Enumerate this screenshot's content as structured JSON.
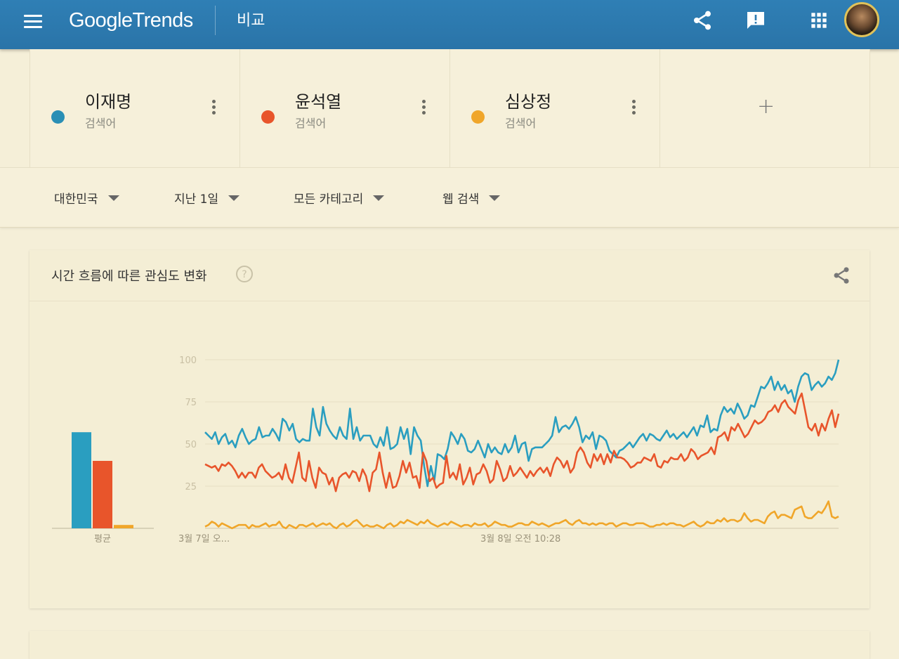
{
  "header": {
    "logo_google": "Google",
    "logo_trends": "Trends",
    "page_title": "비교",
    "icons": [
      "menu-icon",
      "share-icon",
      "feedback-icon",
      "apps-icon",
      "avatar"
    ]
  },
  "terms": [
    {
      "name": "이재명",
      "sub": "검색어",
      "color": "#2a8fb5"
    },
    {
      "name": "윤석열",
      "sub": "검색어",
      "color": "#e8552b"
    },
    {
      "name": "심상정",
      "sub": "검색어",
      "color": "#f0a62a"
    }
  ],
  "add_term_label": "+",
  "filters": {
    "region": "대한민국",
    "time": "지난 1일",
    "category": "모든 카테고리",
    "search_type": "웹 검색"
  },
  "chart_card": {
    "title": "시간 흐름에 따른 관심도 변화",
    "help_icon": "help-icon",
    "share_icon": "share-icon"
  },
  "chart_data": {
    "type": "line",
    "ylim": [
      0,
      100
    ],
    "yticks": [
      "100",
      "75",
      "50",
      "25"
    ],
    "x_tick_labels": [
      "3월 7일 오...",
      "3월 8일 오전 10:28"
    ],
    "average_label": "평균",
    "averages": [
      57,
      40,
      2
    ],
    "series": [
      {
        "name": "이재명",
        "color": "#2a9ec0",
        "values": [
          57,
          55,
          53,
          57,
          50,
          54,
          56,
          50,
          52,
          48,
          55,
          59,
          54,
          50,
          52,
          53,
          60,
          54,
          55,
          55,
          59,
          56,
          52,
          65,
          63,
          58,
          62,
          53,
          51,
          53,
          52,
          52,
          71,
          60,
          55,
          72,
          62,
          58,
          55,
          53,
          60,
          55,
          53,
          71,
          53,
          60,
          52,
          55,
          55,
          55,
          50,
          48,
          54,
          49,
          60,
          47,
          48,
          50,
          60,
          53,
          59,
          44,
          60,
          55,
          52,
          37,
          25,
          37,
          28,
          44,
          43,
          41,
          47,
          57,
          54,
          50,
          56,
          53,
          46,
          45,
          47,
          52,
          47,
          42,
          50,
          45,
          48,
          45,
          44,
          50,
          45,
          48,
          55,
          45,
          50,
          51,
          40,
          47,
          48,
          48,
          48,
          50,
          52,
          55,
          66,
          57,
          60,
          61,
          59,
          62,
          66,
          60,
          51,
          55,
          53,
          57,
          47,
          55,
          54,
          52,
          46,
          44,
          42,
          46,
          47,
          49,
          51,
          48,
          51,
          54,
          56,
          52,
          56,
          55,
          53,
          52,
          55,
          58,
          54,
          56,
          53,
          55,
          57,
          54,
          57,
          60,
          55,
          61,
          60,
          67,
          57,
          59,
          58,
          67,
          72,
          69,
          71,
          68,
          74,
          70,
          65,
          67,
          73,
          72,
          78,
          84,
          83,
          86,
          90,
          82,
          87,
          82,
          85,
          80,
          82,
          75,
          84,
          90,
          92,
          91,
          82,
          85,
          87,
          84,
          86,
          90,
          88,
          92,
          100
        ]
      },
      {
        "name": "윤석열",
        "color": "#e8552b",
        "values": [
          38,
          37,
          36,
          37,
          34,
          38,
          37,
          39,
          37,
          34,
          30,
          33,
          30,
          33,
          33,
          30,
          36,
          38,
          34,
          32,
          30,
          31,
          33,
          29,
          38,
          30,
          27,
          36,
          45,
          30,
          28,
          40,
          30,
          24,
          36,
          33,
          32,
          26,
          30,
          22,
          30,
          32,
          33,
          30,
          34,
          33,
          28,
          35,
          31,
          22,
          33,
          35,
          45,
          33,
          24,
          33,
          24,
          25,
          31,
          40,
          33,
          39,
          30,
          31,
          24,
          45,
          40,
          28,
          30,
          24,
          26,
          27,
          43,
          30,
          33,
          29,
          38,
          26,
          30,
          36,
          26,
          32,
          33,
          38,
          34,
          27,
          29,
          40,
          35,
          28,
          30,
          37,
          31,
          33,
          36,
          33,
          30,
          34,
          31,
          34,
          36,
          33,
          36,
          31,
          38,
          42,
          40,
          36,
          40,
          33,
          36,
          45,
          48,
          45,
          39,
          36,
          44,
          40,
          44,
          38,
          44,
          39,
          46,
          42,
          42,
          41,
          39,
          36,
          37,
          39,
          39,
          42,
          41,
          40,
          44,
          37,
          36,
          40,
          39,
          42,
          41,
          41,
          44,
          40,
          42,
          47,
          45,
          41,
          43,
          44,
          45,
          48,
          44,
          54,
          55,
          57,
          52,
          60,
          58,
          62,
          58,
          54,
          56,
          60,
          64,
          62,
          63,
          65,
          69,
          70,
          73,
          69,
          74,
          76,
          72,
          70,
          68,
          76,
          80,
          70,
          60,
          58,
          62,
          55,
          62,
          58,
          65,
          70,
          60,
          68
        ]
      },
      {
        "name": "심상정",
        "color": "#f0a62a",
        "values": [
          1,
          2,
          4,
          3,
          1,
          3,
          2,
          1,
          0,
          1,
          2,
          2,
          2,
          0,
          2,
          1,
          1,
          2,
          3,
          1,
          2,
          2,
          4,
          1,
          0,
          2,
          1,
          0,
          2,
          2,
          1,
          2,
          3,
          1,
          2,
          3,
          2,
          3,
          1,
          0,
          2,
          3,
          1,
          2,
          4,
          5,
          3,
          1,
          2,
          1,
          1,
          2,
          1,
          0,
          2,
          3,
          1,
          2,
          4,
          3,
          5,
          4,
          3,
          2,
          4,
          3,
          5,
          3,
          2,
          1,
          2,
          3,
          2,
          4,
          3,
          2,
          1,
          2,
          2,
          1,
          3,
          2,
          2,
          3,
          1,
          2,
          4,
          3,
          2,
          2,
          1,
          1,
          2,
          3,
          3,
          2,
          2,
          4,
          3,
          2,
          3,
          2,
          1,
          2,
          3,
          3,
          4,
          5,
          3,
          2,
          4,
          5,
          3,
          3,
          2,
          3,
          2,
          3,
          3,
          2,
          3,
          3,
          1,
          2,
          3,
          3,
          2,
          2,
          3,
          3,
          3,
          2,
          1,
          1,
          2,
          2,
          3,
          2,
          3,
          3,
          2,
          2,
          1,
          2,
          3,
          4,
          2,
          1,
          2,
          4,
          3,
          3,
          5,
          4,
          6,
          4,
          5,
          5,
          4,
          5,
          9,
          6,
          4,
          5,
          5,
          4,
          3,
          7,
          9,
          10,
          6,
          8,
          8,
          7,
          6,
          11,
          12,
          13,
          7,
          6,
          6,
          8,
          10,
          9,
          12,
          16,
          7,
          6,
          7
        ]
      }
    ]
  }
}
